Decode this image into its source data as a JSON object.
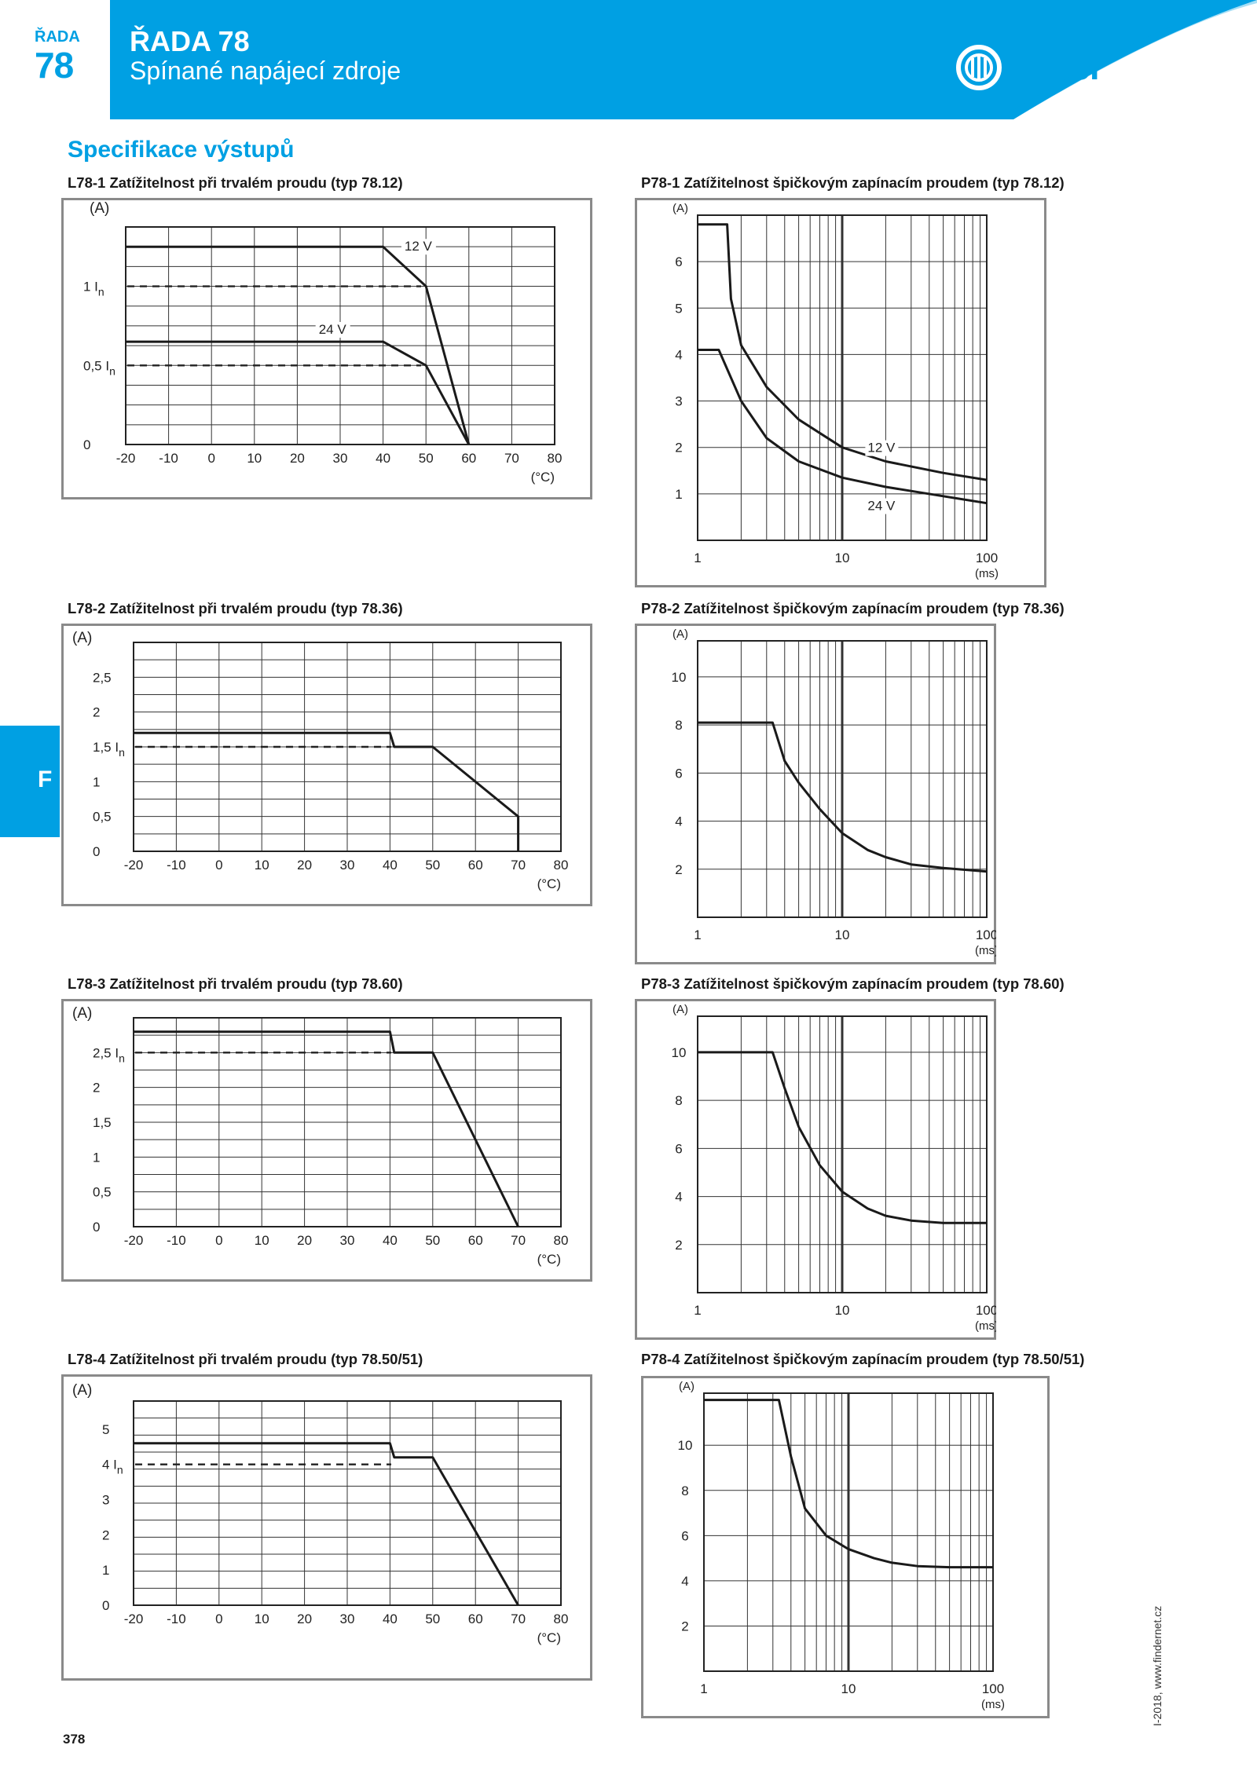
{
  "header": {
    "tab_small": "ŘADA",
    "tab_number": "78",
    "title": "ŘADA 78",
    "subtitle": "Spínané napájecí zdroje",
    "logo_text": "finder",
    "accent_color": "#00a0e3"
  },
  "section_title": "Specifikace výstupů",
  "side_tab": "F",
  "page_number": "378",
  "footer_text": "I-2018, www.findernet.cz",
  "charts": {
    "l1": {
      "title": "L78-1 Zatížitelnost při trvalém proudu (typ 78.12)",
      "yunit": "(A)",
      "xunit": "(°C)",
      "xticks": [
        "-20",
        "-10",
        "0",
        "10",
        "20",
        "30",
        "40",
        "50",
        "60",
        "70",
        "80"
      ],
      "yticks": [
        {
          "label": "1 I",
          "sub": "n",
          "y": 2.0
        },
        {
          "label": "0,5 I",
          "sub": "n",
          "y": 1.0
        },
        {
          "label": "0",
          "sub": "",
          "y": 0
        }
      ],
      "series": [
        {
          "name": "12 V",
          "label_at": [
            45,
            2.45
          ],
          "points": [
            [
              -20,
              2.5
            ],
            [
              40,
              2.5
            ],
            [
              50,
              2.0
            ],
            [
              60,
              0
            ]
          ]
        },
        {
          "name": "24 V",
          "label_at": [
            25,
            1.4
          ],
          "points": [
            [
              -20,
              1.3
            ],
            [
              40,
              1.3
            ],
            [
              50,
              1.0
            ],
            [
              60,
              0
            ]
          ]
        }
      ]
    },
    "l2": {
      "title": "L78-2 Zatížitelnost při trvalém proudu (typ 78.36)",
      "yunit": "(A)",
      "xunit": "(°C)",
      "xticks": [
        "-20",
        "-10",
        "0",
        "10",
        "20",
        "30",
        "40",
        "50",
        "60",
        "70",
        "80"
      ],
      "yticks": [
        {
          "label": "2,5",
          "sub": "",
          "y": 2.5
        },
        {
          "label": "2",
          "sub": "",
          "y": 2.0
        },
        {
          "label": "1,5 I",
          "sub": "n",
          "y": 1.5
        },
        {
          "label": "1",
          "sub": "",
          "y": 1.0
        },
        {
          "label": "0,5",
          "sub": "",
          "y": 0.5
        },
        {
          "label": "0",
          "sub": "",
          "y": 0
        }
      ],
      "series": [
        {
          "name": "",
          "points": [
            [
              -20,
              1.7
            ],
            [
              40,
              1.7
            ],
            [
              41,
              1.5
            ],
            [
              50,
              1.5
            ],
            [
              70,
              0.5
            ],
            [
              70,
              0
            ]
          ]
        }
      ]
    },
    "l3": {
      "title": "L78-3 Zatížitelnost při trvalém proudu (typ 78.60)",
      "yunit": "(A)",
      "xunit": "(°C)",
      "xticks": [
        "-20",
        "-10",
        "0",
        "10",
        "20",
        "30",
        "40",
        "50",
        "60",
        "70",
        "80"
      ],
      "yticks": [
        {
          "label": "2,5 I",
          "sub": "n",
          "y": 2.5
        },
        {
          "label": "2",
          "sub": "",
          "y": 2.0
        },
        {
          "label": "1,5",
          "sub": "",
          "y": 1.5
        },
        {
          "label": "1",
          "sub": "",
          "y": 1.0
        },
        {
          "label": "0,5",
          "sub": "",
          "y": 0.5
        },
        {
          "label": "0",
          "sub": "",
          "y": 0
        }
      ],
      "series": [
        {
          "name": "",
          "points": [
            [
              -20,
              2.8
            ],
            [
              40,
              2.8
            ],
            [
              41,
              2.5
            ],
            [
              50,
              2.5
            ],
            [
              70,
              0
            ]
          ]
        }
      ]
    },
    "l4": {
      "title": "L78-4 Zatížitelnost při trvalém proudu (typ 78.50/51)",
      "yunit": "(A)",
      "xunit": "(°C)",
      "xticks": [
        "-20",
        "-10",
        "0",
        "10",
        "20",
        "30",
        "40",
        "50",
        "60",
        "70",
        "80"
      ],
      "yticks": [
        {
          "label": "5",
          "sub": "",
          "y": 5
        },
        {
          "label": "4 I",
          "sub": "n",
          "y": 4
        },
        {
          "label": "3",
          "sub": "",
          "y": 3
        },
        {
          "label": "2",
          "sub": "",
          "y": 2
        },
        {
          "label": "1",
          "sub": "",
          "y": 1
        },
        {
          "label": "0",
          "sub": "",
          "y": 0
        }
      ],
      "series": [
        {
          "name": "",
          "points": [
            [
              -20,
              4.6
            ],
            [
              40,
              4.6
            ],
            [
              41,
              4.2
            ],
            [
              50,
              4.2
            ],
            [
              70,
              0
            ]
          ]
        }
      ]
    },
    "p1": {
      "title": "P78-1 Zatížitelnost špičkovým zapínacím proudem (typ 78.12)",
      "yunit": "(A)",
      "xunit": "(ms)",
      "xticks": [
        "1",
        "10",
        "100"
      ],
      "yticks": [
        "6",
        "5",
        "4",
        "3",
        "2",
        "1"
      ],
      "series": [
        {
          "name": "12 V",
          "label_at": [
            15,
            1.9
          ],
          "points": [
            [
              1,
              6.8
            ],
            [
              1.6,
              6.8
            ],
            [
              1.7,
              5.2
            ],
            [
              2,
              4.2
            ],
            [
              3,
              3.3
            ],
            [
              5,
              2.6
            ],
            [
              10,
              2.0
            ],
            [
              20,
              1.7
            ],
            [
              50,
              1.45
            ],
            [
              100,
              1.3
            ]
          ]
        },
        {
          "name": "24 V",
          "label_at": [
            15,
            0.65
          ],
          "points": [
            [
              1,
              4.1
            ],
            [
              1.4,
              4.1
            ],
            [
              2,
              3.0
            ],
            [
              3,
              2.2
            ],
            [
              5,
              1.7
            ],
            [
              10,
              1.35
            ],
            [
              20,
              1.15
            ],
            [
              50,
              0.95
            ],
            [
              100,
              0.8
            ]
          ]
        }
      ]
    },
    "p2": {
      "title": "P78-2 Zatížitelnost špičkovým zapínacím proudem (typ 78.36)",
      "yunit": "(A)",
      "xunit": "(ms)",
      "xticks": [
        "1",
        "10",
        "100"
      ],
      "yticks": [
        "10",
        "8",
        "6",
        "4",
        "2"
      ],
      "series": [
        {
          "name": "",
          "points": [
            [
              1,
              8.1
            ],
            [
              3.3,
              8.1
            ],
            [
              4,
              6.5
            ],
            [
              5,
              5.6
            ],
            [
              7,
              4.5
            ],
            [
              10,
              3.5
            ],
            [
              15,
              2.8
            ],
            [
              20,
              2.5
            ],
            [
              30,
              2.2
            ],
            [
              50,
              2.05
            ],
            [
              100,
              1.9
            ]
          ]
        }
      ]
    },
    "p3": {
      "title": "P78-3 Zatížitelnost špičkovým zapínacím proudem (typ 78.60)",
      "yunit": "(A)",
      "xunit": "(ms)",
      "xticks": [
        "1",
        "10",
        "100"
      ],
      "yticks": [
        "10",
        "8",
        "6",
        "4",
        "2"
      ],
      "series": [
        {
          "name": "",
          "points": [
            [
              1,
              10.0
            ],
            [
              3.3,
              10.0
            ],
            [
              4,
              8.5
            ],
            [
              5,
              6.9
            ],
            [
              7,
              5.3
            ],
            [
              10,
              4.2
            ],
            [
              15,
              3.5
            ],
            [
              20,
              3.2
            ],
            [
              30,
              3.0
            ],
            [
              50,
              2.9
            ],
            [
              100,
              2.9
            ]
          ]
        }
      ]
    },
    "p4": {
      "title": "P78-4 Zatížitelnost špičkovým zapínacím proudem (typ 78.50/51)",
      "yunit": "(A)",
      "xunit": "(ms)",
      "xticks": [
        "1",
        "10",
        "100"
      ],
      "yticks": [
        "10",
        "8",
        "6",
        "4",
        "2"
      ],
      "series": [
        {
          "name": "",
          "points": [
            [
              1,
              12.0
            ],
            [
              3.3,
              12.0
            ],
            [
              4,
              9.5
            ],
            [
              5,
              7.2
            ],
            [
              7,
              6.0
            ],
            [
              10,
              5.4
            ],
            [
              15,
              5.0
            ],
            [
              20,
              4.8
            ],
            [
              30,
              4.65
            ],
            [
              50,
              4.6
            ],
            [
              100,
              4.6
            ]
          ]
        }
      ]
    }
  }
}
